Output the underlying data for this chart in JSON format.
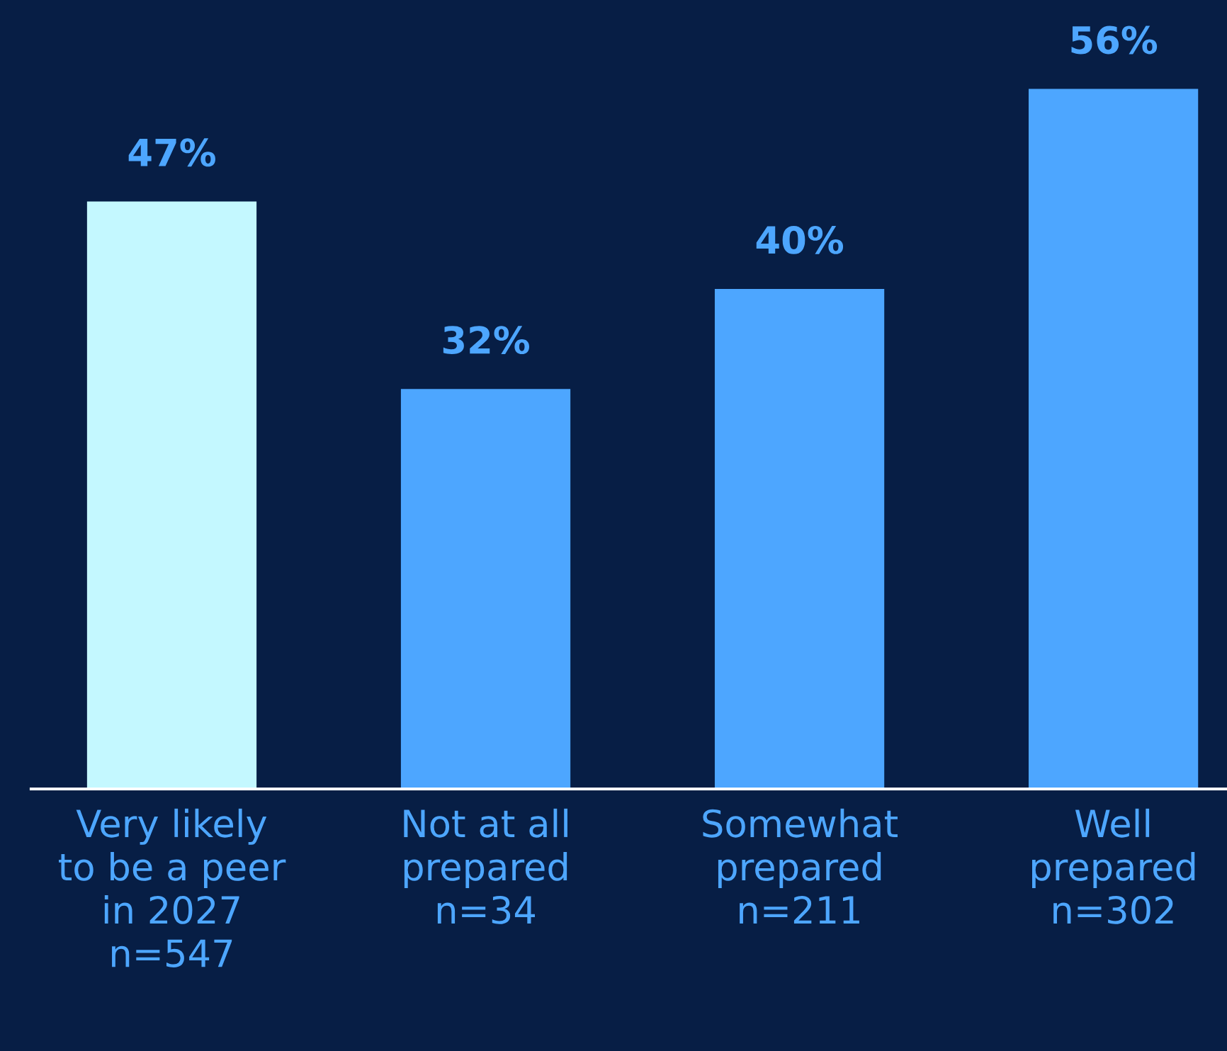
{
  "chart_data": {
    "type": "bar",
    "categories": [
      "Very likely\nto be a peer\nin 2027\nn=547",
      "Not at all\nprepared\nn=34",
      "Somewhat\nprepared\nn=211",
      "Well\nprepared\nn=302"
    ],
    "values": [
      47,
      32,
      40,
      56
    ],
    "colors": [
      "#c4f8ff",
      "#4da6ff",
      "#4da6ff",
      "#4da6ff"
    ],
    "value_labels": [
      "47%",
      "32%",
      "40%",
      "56%"
    ],
    "grid": false,
    "legend": false
  }
}
